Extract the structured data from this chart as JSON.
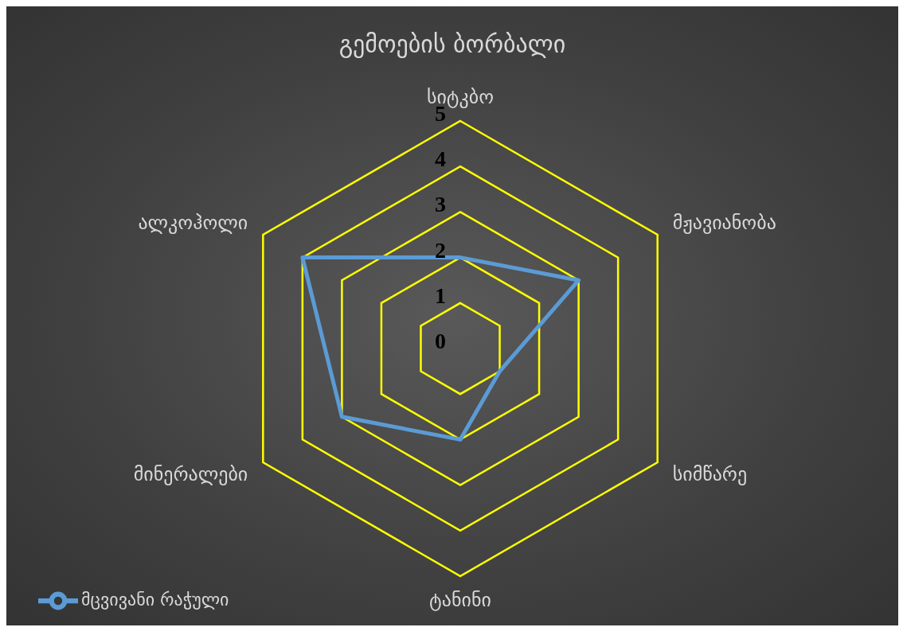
{
  "chart_data": {
    "type": "radar",
    "title": "გემოების ბორბალი",
    "categories": [
      "სიტკბო",
      "მჟავიანობა",
      "სიმწარე",
      "ტანინი",
      "მინერალები",
      "ალკოჰოლი"
    ],
    "series": [
      {
        "name": "მცვივანი რაჭული",
        "color": "#5b9bd5",
        "values": [
          2,
          3,
          1,
          2,
          3,
          4
        ]
      }
    ],
    "ylim": [
      0,
      5
    ],
    "yticks": [
      0,
      1,
      2,
      3,
      4,
      5
    ],
    "grid": true,
    "legend": "bottom left",
    "marker": "none"
  }
}
